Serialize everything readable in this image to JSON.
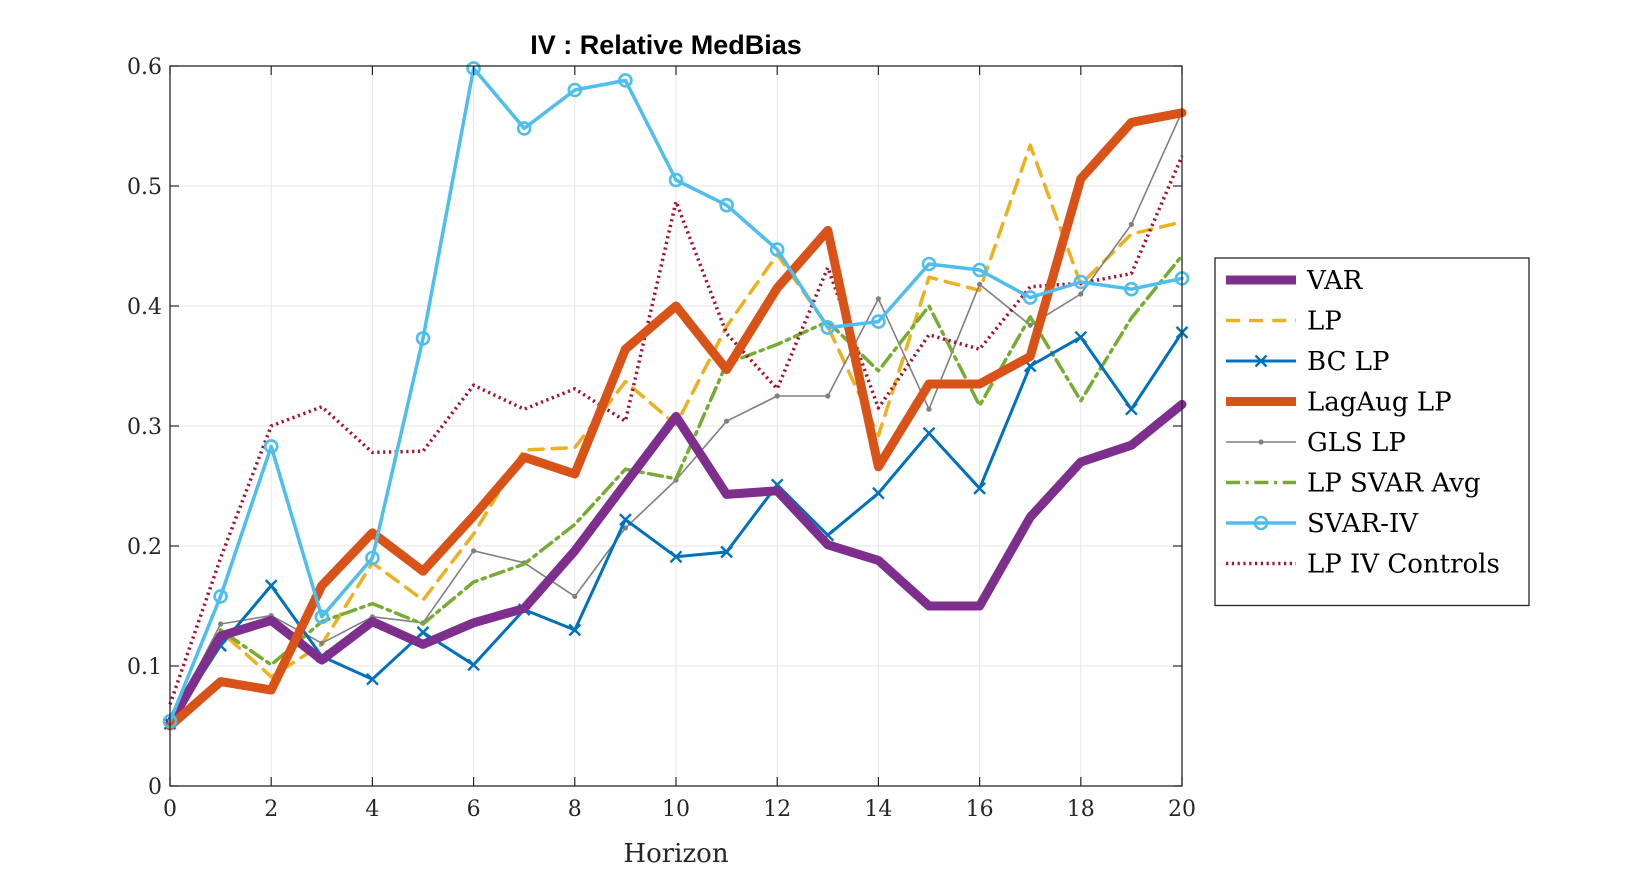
{
  "chart_data": {
    "type": "line",
    "title": "IV : Relative MedBias",
    "xlabel": "Horizon",
    "ylabel": "",
    "xlim": [
      0,
      20
    ],
    "ylim": [
      0,
      0.6
    ],
    "xticks": [
      0,
      2,
      4,
      6,
      8,
      10,
      12,
      14,
      16,
      18,
      20
    ],
    "yticks": [
      0,
      0.1,
      0.2,
      0.3,
      0.4,
      0.5,
      0.6
    ],
    "grid": true,
    "legend_position": "outside-right",
    "x": [
      0,
      1,
      2,
      3,
      4,
      5,
      6,
      7,
      8,
      9,
      10,
      11,
      12,
      13,
      14,
      15,
      16,
      17,
      18,
      19,
      20
    ],
    "series": [
      {
        "name": "VAR",
        "color": "#7e2f8e",
        "style": "solid",
        "marker": "none",
        "width": 9,
        "values": [
          0.052,
          0.125,
          0.138,
          0.105,
          0.137,
          0.118,
          0.136,
          0.148,
          0.196,
          0.252,
          0.308,
          0.243,
          0.246,
          0.201,
          0.188,
          0.15,
          0.15,
          0.224,
          0.27,
          0.284,
          0.318
        ]
      },
      {
        "name": "LP",
        "color": "#edb120",
        "style": "dashed",
        "marker": "none",
        "width": 3.5,
        "values": [
          0.053,
          0.129,
          0.091,
          0.118,
          0.186,
          0.155,
          0.21,
          0.28,
          0.282,
          0.337,
          0.301,
          0.383,
          0.443,
          0.383,
          0.292,
          0.424,
          0.413,
          0.534,
          0.418,
          0.46,
          0.47
        ]
      },
      {
        "name": "BC LP",
        "color": "#0072bd",
        "style": "solid",
        "marker": "x",
        "width": 3,
        "values": [
          0.052,
          0.117,
          0.167,
          0.108,
          0.089,
          0.128,
          0.101,
          0.147,
          0.13,
          0.222,
          0.191,
          0.195,
          0.251,
          0.209,
          0.244,
          0.294,
          0.248,
          0.35,
          0.374,
          0.314,
          0.378
        ]
      },
      {
        "name": "LagAug LP",
        "color": "#d95319",
        "style": "solid",
        "marker": "none",
        "width": 9,
        "values": [
          0.05,
          0.087,
          0.08,
          0.167,
          0.211,
          0.179,
          0.225,
          0.274,
          0.26,
          0.364,
          0.4,
          0.347,
          0.415,
          0.463,
          0.266,
          0.335,
          0.335,
          0.358,
          0.506,
          0.553,
          0.561
        ]
      },
      {
        "name": "GLS LP",
        "color": "#808080",
        "style": "solid",
        "marker": "dot",
        "width": 1.6,
        "values": [
          0.053,
          0.135,
          0.142,
          0.119,
          0.141,
          0.136,
          0.196,
          0.186,
          0.158,
          0.215,
          0.255,
          0.304,
          0.325,
          0.325,
          0.406,
          0.314,
          0.418,
          0.384,
          0.41,
          0.468,
          0.562
        ]
      },
      {
        "name": "LP SVAR Avg",
        "color": "#77ac30",
        "style": "dashdot",
        "marker": "none",
        "width": 3.5,
        "values": [
          0.053,
          0.13,
          0.101,
          0.137,
          0.152,
          0.135,
          0.17,
          0.185,
          0.218,
          0.264,
          0.256,
          0.352,
          0.368,
          0.387,
          0.346,
          0.4,
          0.317,
          0.391,
          0.321,
          0.39,
          0.442
        ]
      },
      {
        "name": "SVAR-IV",
        "color": "#4dbeee",
        "style": "solid",
        "marker": "circle",
        "width": 3.5,
        "values": [
          0.054,
          0.158,
          0.283,
          0.141,
          0.19,
          0.373,
          0.598,
          0.548,
          0.58,
          0.588,
          0.505,
          0.484,
          0.447,
          0.382,
          0.387,
          0.435,
          0.43,
          0.407,
          0.42,
          0.414,
          0.423
        ]
      },
      {
        "name": "LP IV Controls",
        "color": "#a2142f",
        "style": "dotted",
        "marker": "none",
        "width": 3.5,
        "values": [
          0.068,
          0.19,
          0.3,
          0.316,
          0.278,
          0.279,
          0.334,
          0.314,
          0.331,
          0.304,
          0.487,
          0.377,
          0.331,
          0.432,
          0.315,
          0.376,
          0.364,
          0.416,
          0.419,
          0.427,
          0.525
        ]
      }
    ]
  }
}
